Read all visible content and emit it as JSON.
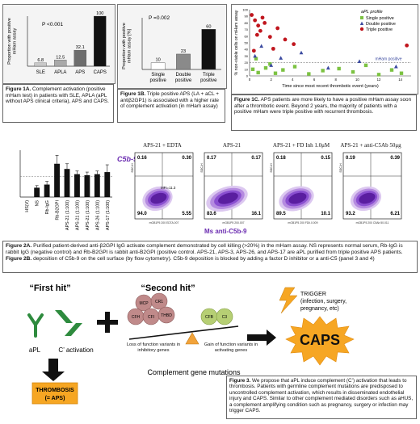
{
  "fig1a": {
    "chart_data": {
      "type": "bar",
      "categories": [
        "SLE",
        "APLA",
        "APS",
        "CAPS"
      ],
      "values": [
        6.8,
        12.5,
        32.1,
        100
      ],
      "value_labels": [
        "6.8",
        "12.5",
        "32.1",
        "100"
      ],
      "ylabel": "Proportion with positive mHam assay",
      "annotation": "P <0.001",
      "ylim": [
        0,
        100
      ],
      "colors": [
        "#c8c8c8",
        "#a9a9a9",
        "#6d6d6d",
        "#111111"
      ]
    },
    "caption_bold": "Figure 1A.",
    "caption_text": " Complement activation (positive mHam test) in patients with SLE, APLA (aPL without APS clinical criteria), APS and CAPS."
  },
  "fig1b": {
    "chart_data": {
      "type": "bar",
      "categories": [
        "Single positive",
        "Double positive",
        "Triple positive"
      ],
      "category_lines": [
        [
          "Single",
          "positive"
        ],
        [
          "Double",
          "positive"
        ],
        [
          "Triple",
          "positive"
        ]
      ],
      "values": [
        10,
        23,
        60
      ],
      "value_labels": [
        "10",
        "23",
        "60"
      ],
      "ylabel": "Proportion with positive mHam assay [%]",
      "annotation": "P =0.002",
      "ylim": [
        0,
        70
      ],
      "colors": [
        "#ffffff",
        "#8a8a8a",
        "#111111"
      ]
    },
    "caption_bold": "Figure 1B.",
    "caption_text": " Triple positive APS (LA + aCL + antiβ2GP1) is associated with a higher rate of complement activation (in mHam assay)"
  },
  "fig1c": {
    "chart_data": {
      "type": "scatter",
      "xlabel": "Time since most recent thrombotic event (years)",
      "ylabel": "% non-viable cells on mHam assay",
      "legend_title": "aPL profile",
      "legend_position": "top-right",
      "xlim": [
        0,
        15
      ],
      "ylim": [
        0,
        100
      ],
      "xticks": [
        0,
        2,
        4,
        6,
        8,
        10,
        12,
        14
      ],
      "yticks": [
        0,
        10,
        20,
        30,
        40,
        50,
        60,
        70,
        80,
        90,
        100
      ],
      "threshold_y": 20,
      "annotation": "mHam positive",
      "series": [
        {
          "name": "Single positive",
          "color": "#7cc242",
          "marker": "square",
          "x": [
            0.3,
            0.8,
            1.5,
            2.4,
            3.1,
            4.2,
            5.5,
            6.8,
            8.3,
            9.6,
            10.8,
            12.0,
            13.2,
            14.1,
            0.6,
            1.9
          ],
          "y": [
            10,
            5,
            12,
            4,
            9,
            14,
            3,
            8,
            11,
            6,
            16,
            2,
            9,
            4,
            26,
            18
          ]
        },
        {
          "name": "Double positive",
          "color": "#3b4aa0",
          "marker": "triangle",
          "x": [
            0.5,
            1.1,
            2.0,
            2.9,
            4.8,
            7.3,
            10.2,
            13.6
          ],
          "y": [
            30,
            45,
            16,
            27,
            35,
            12,
            22,
            14
          ]
        },
        {
          "name": "Triple positive",
          "color": "#c0161e",
          "marker": "circle",
          "x": [
            0.2,
            0.5,
            0.8,
            1.0,
            1.4,
            1.9,
            2.6,
            3.3,
            4.1,
            0.4,
            1.2,
            0.7,
            2.2,
            14.6
          ],
          "y": [
            92,
            84,
            76,
            68,
            80,
            59,
            72,
            55,
            48,
            38,
            88,
            62,
            41,
            46
          ]
        }
      ]
    },
    "caption_bold": "Figure 1C.",
    "caption_text": " APS patients are more likely to have a positive mHam assay soon after a thrombotic event.  Beyond 2 years, the majority of patients with a positive mHam were triple positive with recurrent thrombosis."
  },
  "fig2a": {
    "chart_data": {
      "type": "bar",
      "categories": [
        "NS",
        "Rb-IgG",
        "Rb-B2GPI",
        "APS-21 (1:100)",
        "APS-21 (1:100)",
        "APS-21 (1:100)",
        "APS-26 (1:100)",
        "APS-17 (1:100)"
      ],
      "tick_labels": [
        "NS",
        "Rb-IgG",
        "Rb-B2GPI",
        "APS-21 (1:100)",
        "APS-21 (1:100)",
        "APS-21 (1:100)",
        "APS-26 (1:100)",
        "APS-17 (1:100)"
      ],
      "extra_tick": "HS(V)",
      "values": [
        9,
        12,
        32,
        27,
        22,
        21,
        22,
        24
      ],
      "errors": [
        2,
        3,
        8,
        5,
        3,
        3,
        3,
        7
      ],
      "threshold_y": 20,
      "ylim": [
        0,
        45
      ],
      "bar_color": "#111111"
    }
  },
  "fig2b": {
    "c5b9_label": "C5b-9",
    "x_axis_label": "Ms anti-C5b-9",
    "panels": [
      {
        "title": "APS-21 + EDTA",
        "q_tl": "0.16",
        "q_tr": "0.30",
        "q_bl": "94.0",
        "q_br": "5.55",
        "mfi": "MFI=11.3",
        "footer": "mGB1P5 200 EDTA.007"
      },
      {
        "title": "APS-21",
        "q_tl": "0.17",
        "q_tr": "0.17",
        "q_bl": "83.6",
        "q_br": "16.1",
        "mfi": "",
        "footer": "mGB1P5 200.007"
      },
      {
        "title": "APS-21 + FD Inh 1.0μM",
        "q_tl": "0.18",
        "q_tr": "0.15",
        "q_bl": "89.5",
        "q_br": "10.1",
        "mfi": "",
        "footer": "mGB1P5 200 FDIi.0.009"
      },
      {
        "title": "APS-21 + anti-C5Ab 50μg",
        "q_tl": "0.19",
        "q_tr": "0.39",
        "q_bl": "93.2",
        "q_br": "6.21",
        "mfi": "",
        "footer": "mGB1P5 200 C5Ab 50.011"
      }
    ]
  },
  "fig2_caption": {
    "bold_a": "Figure 2A.",
    "text_a": " Purified patient-derived anti-β2GPI IgG activate complement demonstrated by cell killing (>20%) in the mHam assay. NS represents normal serum, Rb-IgG is rabbit IgG (negative control) and Rb-B2GPI is rabbit anti-B2GPI (positive control. APS-21, APS-3, APS-26, and APS-17 are aPL purified from triple positive APS patients. ",
    "bold_b": "Figure 2B.",
    "text_b": " deposition of C5b-9 on the cell surface (by flow cytometry). C5b-9 deposition is blocked by adding a factor D inhibitor or a anti-C5 (panel 3 and 4)"
  },
  "fig3": {
    "first_hit": "“First hit”",
    "second_hit": "“Second hit”",
    "apl_label": "aPL",
    "c_activation_label": "C’ activation",
    "thrombosis_line1": "THROMBOSIS",
    "thrombosis_line2": "(= APS)",
    "trigger_line1": "TRIGGER",
    "trigger_line2": "(infection, surgery,",
    "trigger_line3": "pregnancy, etc)",
    "caps_label": "CAPS",
    "mcp": "MCP",
    "cr1": "CR1",
    "cfh": "CFH",
    "cfi": "CFI",
    "thbd": "THBD",
    "cfb": "CFB",
    "c3": "C3",
    "loss_text": "Loss of function variants in inhibitory genes",
    "gain_text": "Gain of function variants in activating genes",
    "mutations_label": "Complement gene mutations",
    "caption_bold": "Figure 3.",
    "caption_text": " We propose that aPL induce complement (C’) activation that leads to thrombosis. Patients with germline complement mutations are predisposed to uncontrolled complement activation, which results in disseminated endothelial injury and CAPS. Similar to other complement mediated disorders such as aHUS, a complement amplifying condition such as pregnancy, surgery or infection may trigger CAPS."
  }
}
